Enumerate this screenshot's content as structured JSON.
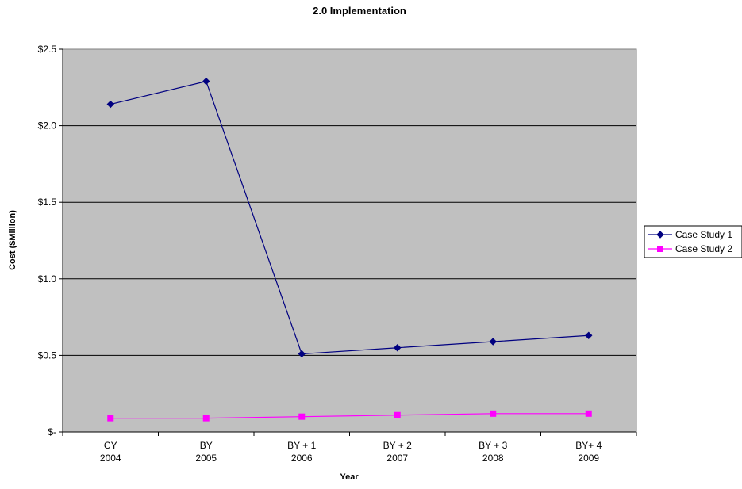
{
  "chart_data": {
    "type": "line",
    "title": "2.0 Implementation",
    "xlabel": "Year",
    "ylabel": "Cost ($Million)",
    "categories": [
      [
        "CY",
        "2004"
      ],
      [
        "BY",
        "2005"
      ],
      [
        "BY + 1",
        "2006"
      ],
      [
        "BY + 2",
        "2007"
      ],
      [
        "BY + 3",
        "2008"
      ],
      [
        "BY+ 4",
        "2009"
      ]
    ],
    "ylim": [
      0,
      2.5
    ],
    "yticks": [
      {
        "value": 0,
        "label": "$-"
      },
      {
        "value": 0.5,
        "label": "$0.5"
      },
      {
        "value": 1.0,
        "label": "$1.0"
      },
      {
        "value": 1.5,
        "label": "$1.5"
      },
      {
        "value": 2.0,
        "label": "$2.0"
      },
      {
        "value": 2.5,
        "label": "$2.5"
      }
    ],
    "grid": true,
    "legend_position": "right",
    "plot_background": "#c0c0c0",
    "series": [
      {
        "name": "Case Study 1",
        "color": "#000080",
        "marker": "diamond",
        "values": [
          2.14,
          2.29,
          0.51,
          0.55,
          0.59,
          0.63
        ]
      },
      {
        "name": "Case Study 2",
        "color": "#ff00ff",
        "marker": "square",
        "values": [
          0.09,
          0.09,
          0.1,
          0.11,
          0.12,
          0.12
        ]
      }
    ]
  }
}
